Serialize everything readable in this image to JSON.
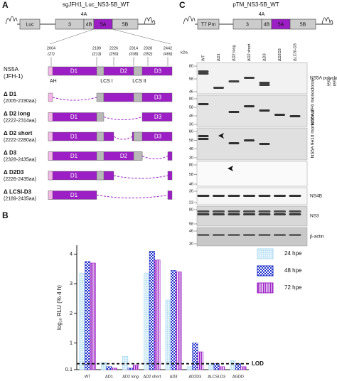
{
  "panel_a": {
    "letter": "A",
    "title": "sgJFH1_Luc_NS3-5B_WT",
    "genome": [
      "Luc",
      "3",
      "4A",
      "4B",
      "5A",
      "5B"
    ],
    "positions": [
      {
        "aa": "2004",
        "rel": "(27)"
      },
      {
        "aa": "2189",
        "rel": "(213)"
      },
      {
        "aa": "2226",
        "rel": "(250)"
      },
      {
        "aa": "2314",
        "rel": "(338)"
      },
      {
        "aa": "2328",
        "rel": "(352)"
      },
      {
        "aa": "2442",
        "rel": "(466)"
      }
    ],
    "protein": "NS5A",
    "strain": "(JFH-1)",
    "domains": [
      "D1",
      "D2",
      "D3"
    ],
    "motifs": [
      "AH",
      "LCS I",
      "LCS II"
    ],
    "constructs": [
      {
        "name": "Δ D1",
        "range": "(2005-2190aa)",
        "labels": [
          "D3"
        ]
      },
      {
        "name": "Δ D2 long",
        "range": "(2222-2314aa)",
        "labels": [
          "D1",
          "D3"
        ]
      },
      {
        "name": "Δ D2 short",
        "range": "(2222-2280aa)",
        "labels": [
          "D1",
          "D3"
        ]
      },
      {
        "name": "Δ D3",
        "range": "(2328-2435aa)",
        "labels": [
          "D1",
          "D2"
        ]
      },
      {
        "name": "Δ D2D3",
        "range": "(2226-2435aa)",
        "labels": [
          "D1"
        ]
      },
      {
        "name": "Δ LCSI-D3",
        "range": "(2189-2435aa)",
        "labels": [
          "D1"
        ]
      }
    ]
  },
  "panel_b": {
    "letter": "B"
  },
  "chart_data": {
    "type": "bar",
    "ylabel": "log₁₀ RLU (% 4 h)",
    "categories": [
      "WT",
      "ΔD1",
      "ΔD2 long",
      "ΔD2 short",
      "ΔD3",
      "ΔD2D3",
      "ΔLCSI-D3",
      "ΔGDD"
    ],
    "series": [
      {
        "name": "24 hpe",
        "color": "#a9d8f2",
        "values": [
          3.35,
          0.35,
          0.55,
          3.35,
          2.45,
          0.2,
          0.3,
          0.4
        ]
      },
      {
        "name": "48 hpe",
        "color": "#1e2fc8",
        "values": [
          3.75,
          0.2,
          0.15,
          4.1,
          3.45,
          1.0,
          0.3,
          0.3
        ]
      },
      {
        "name": "72 hpe",
        "color": "#9b1fc4",
        "values": [
          3.7,
          0.15,
          0.25,
          3.8,
          3.4,
          0.7,
          0.2,
          0.2
        ]
      }
    ],
    "ylim": [
      0.1,
      4.3
    ],
    "yticks": [
      0.1,
      1,
      2,
      3,
      4
    ],
    "reference_line": {
      "value": 0.3,
      "label": "LOD"
    }
  },
  "panel_c": {
    "letter": "C",
    "title": "pTM_NS3-5B_WT",
    "genome": [
      "T7 Pm",
      "3",
      "4A",
      "4B",
      "5A",
      "5B"
    ],
    "unit": "kDa",
    "lanes": [
      "WT",
      "ΔD1",
      "ΔD2 long",
      "ΔD2 short",
      "ΔD3",
      "ΔD2D3",
      "ΔLCSI-D3"
    ],
    "blots": [
      {
        "label": "NS5A polyclonal",
        "markers": [
          "80",
          "58",
          "46"
        ],
        "notes": [
          "*p56",
          "*p58"
        ]
      },
      {
        "label": "NS5A 2F6 monoclonal",
        "markers": [
          "80",
          "58",
          "46",
          "30"
        ]
      },
      {
        "label": "NS5A 9e10 monoclonal",
        "markers": [
          "80",
          "58",
          "46",
          "30"
        ]
      },
      {
        "label": "",
        "markers": [
          "80",
          "58",
          "46"
        ]
      },
      {
        "label": "NS4B",
        "markers": [
          "30",
          "23"
        ]
      },
      {
        "label": "NS3",
        "markers": [
          "80",
          "58"
        ]
      },
      {
        "label": "β-actin",
        "markers": [
          "46",
          "30"
        ]
      }
    ]
  }
}
